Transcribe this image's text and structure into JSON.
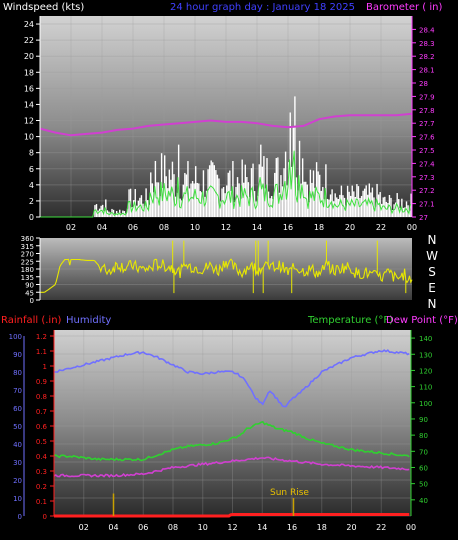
{
  "chart_data": [
    {
      "type": "line",
      "title": "24 hour graph day : January 18 2025",
      "left_label": "Windspeed (kts)",
      "right_label": "Barometer ( in)",
      "x_ticks": [
        "02",
        "04",
        "06",
        "08",
        "10",
        "12",
        "14",
        "16",
        "18",
        "20",
        "22",
        "00"
      ],
      "x_range": [
        0,
        24
      ],
      "y_left_ticks": [
        0,
        2,
        4,
        6,
        8,
        10,
        12,
        14,
        16,
        18,
        20,
        22,
        24
      ],
      "y_left_range": [
        0,
        25
      ],
      "y_right_ticks": [
        27,
        27.1,
        27.2,
        27.3,
        27.4,
        27.5,
        27.6,
        27.7,
        27.8,
        27.9,
        28,
        28.1,
        28.2,
        28.3,
        28.4
      ],
      "y_right_range": [
        27,
        28.5
      ],
      "series": [
        {
          "color": "#d040d0",
          "axis": "right",
          "x": [
            0,
            1,
            2,
            3,
            4,
            5,
            6,
            7,
            8,
            9,
            10,
            11,
            12,
            13,
            14,
            15,
            16,
            17,
            18,
            19,
            20,
            21,
            22,
            23,
            24
          ],
          "y": [
            27.66,
            27.63,
            27.61,
            27.62,
            27.63,
            27.65,
            27.66,
            27.68,
            27.69,
            27.7,
            27.71,
            27.72,
            27.71,
            27.71,
            27.7,
            27.68,
            27.67,
            27.68,
            27.73,
            27.75,
            27.76,
            27.76,
            27.76,
            27.76,
            27.77
          ]
        },
        {
          "color": "#ffffff",
          "axis": "left",
          "style": "gust-bars"
        },
        {
          "color": "#40e040",
          "axis": "left",
          "style": "avg-line"
        }
      ]
    },
    {
      "type": "line",
      "title": "",
      "left_label": "",
      "x_range": [
        0,
        24
      ],
      "y_left_ticks": [
        0,
        45,
        90,
        135,
        180,
        225,
        270,
        315,
        360
      ],
      "y_left_range": [
        0,
        360
      ],
      "compass_labels": [
        "N",
        "W",
        "S",
        "E",
        "N"
      ],
      "series": [
        {
          "color": "#e8e800",
          "style": "direction",
          "x": [
            0,
            0.3,
            1,
            1.3,
            1.6,
            2,
            2.5,
            3,
            3.5,
            4,
            4.5,
            5,
            5.5,
            6,
            6.5,
            7,
            7.5,
            8,
            8.5,
            9,
            9.5,
            10,
            10.5,
            11,
            11.5,
            12,
            12.5,
            13,
            13.5,
            14,
            14.5,
            15,
            15.5,
            16,
            16.5,
            17,
            17.5,
            18,
            18.5,
            19,
            19.5,
            20,
            20.5,
            21,
            21.5,
            22,
            22.5,
            23,
            23.5,
            24
          ],
          "y": [
            45,
            45,
            90,
            200,
            235,
            235,
            235,
            230,
            230,
            180,
            170,
            210,
            190,
            200,
            180,
            180,
            210,
            200,
            190,
            160,
            200,
            190,
            180,
            200,
            170,
            230,
            190,
            160,
            200,
            180,
            190,
            190,
            200,
            160,
            190,
            170,
            180,
            150,
            200,
            170,
            190,
            190,
            150,
            160,
            140,
            130,
            160,
            120,
            150,
            110
          ]
        }
      ]
    },
    {
      "type": "line",
      "title": "",
      "labels": {
        "rainfall": "Rainfall (.in)",
        "humidity": "Humidity",
        "temperature": "Temperature (°F)",
        "dew_point": "Dew Point (°F)"
      },
      "annotation": "Sun Rise",
      "x_ticks": [
        "02",
        "04",
        "06",
        "08",
        "10",
        "12",
        "14",
        "16",
        "18",
        "20",
        "22",
        "00"
      ],
      "x_range": [
        0,
        24
      ],
      "humidity_ticks": [
        0,
        10,
        20,
        30,
        40,
        50,
        60,
        70,
        80,
        90,
        100
      ],
      "rain_ticks": [
        0,
        0.1,
        0.2,
        0.3,
        0.4,
        0.5,
        0.6,
        0.7,
        0.8,
        0.9,
        1,
        1.1,
        1.2
      ],
      "temp_ticks": [
        40,
        50,
        60,
        70,
        80,
        90,
        100,
        110,
        120,
        130,
        140
      ],
      "temp_range": [
        30,
        145
      ],
      "series": [
        {
          "name": "Humidity",
          "color": "#7070ff",
          "axis": "humidity",
          "x": [
            0,
            1,
            2,
            3,
            4,
            5,
            6,
            7,
            8,
            9,
            10,
            11,
            12,
            12.5,
            13,
            13.5,
            14,
            14.5,
            15,
            15.5,
            16,
            16.5,
            17,
            17.5,
            18,
            19,
            20,
            21,
            22,
            23,
            24
          ],
          "y": [
            80,
            82,
            84,
            86,
            88,
            90,
            91,
            88,
            84,
            80,
            79,
            80,
            80,
            78,
            74,
            66,
            62,
            70,
            65,
            60,
            65,
            68,
            72,
            76,
            80,
            84,
            88,
            90,
            92,
            91,
            90
          ]
        },
        {
          "name": "Temperature",
          "color": "#30d030",
          "axis": "temp",
          "x": [
            0,
            1,
            2,
            3,
            4,
            5,
            6,
            7,
            8,
            9,
            10,
            11,
            12,
            12.5,
            13,
            13.5,
            14,
            14.5,
            15,
            15.5,
            16,
            16.5,
            17,
            18,
            19,
            20,
            21,
            22,
            23,
            24
          ],
          "y": [
            67,
            67,
            66,
            65,
            65,
            65,
            65,
            68,
            71,
            73,
            74,
            75,
            78,
            80,
            84,
            86,
            88,
            86,
            84,
            83,
            82,
            80,
            78,
            75,
            73,
            71,
            70,
            69,
            68,
            67
          ]
        },
        {
          "name": "Dew Point",
          "color": "#d040d0",
          "axis": "temp",
          "x": [
            0,
            2,
            4,
            6,
            8,
            10,
            12,
            13,
            14,
            15,
            16,
            17,
            18,
            20,
            22,
            24
          ],
          "y": [
            55,
            55,
            55,
            56,
            60,
            62,
            64,
            65,
            66,
            65,
            64,
            63,
            62,
            61,
            60,
            59
          ]
        },
        {
          "name": "Rainfall",
          "color": "#ff2020",
          "axis": "rain",
          "x": [
            0,
            11.8,
            11.9,
            24
          ],
          "y": [
            0,
            0,
            0.01,
            0.01
          ]
        }
      ],
      "markers": [
        {
          "x": 4,
          "height": 0.15,
          "color": "#c8a000"
        },
        {
          "x": 16.1,
          "height": 0.12,
          "color": "#c8a000"
        }
      ]
    }
  ]
}
